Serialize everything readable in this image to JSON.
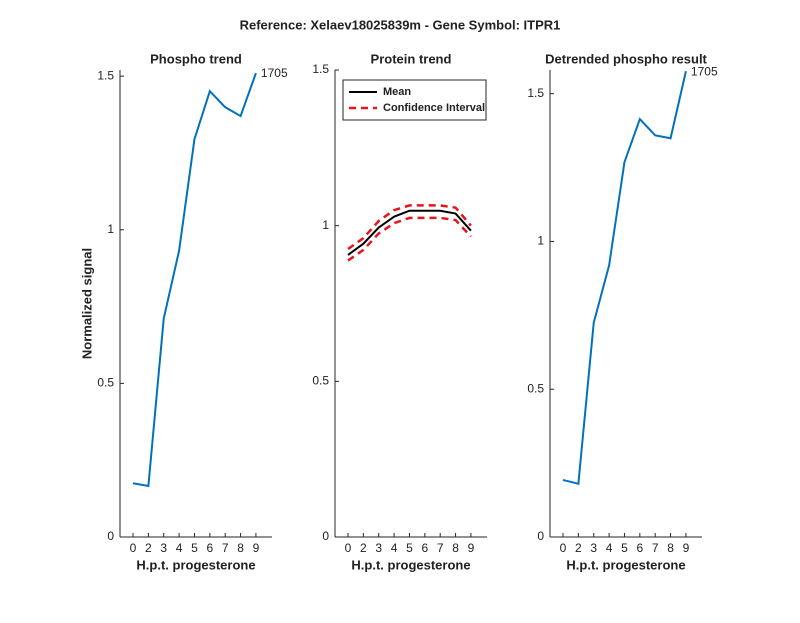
{
  "title": "Reference:  Xelaev18025839m - Gene Symbol:  ITPR1",
  "chart_data": [
    {
      "type": "line",
      "title": "Phospho trend",
      "ylabel": "Normalized signal",
      "xlabel": "H.p.t. progesterone",
      "categories": [
        "0",
        "2",
        "3",
        "4",
        "5",
        "6",
        "7",
        "8",
        "9"
      ],
      "series": [
        {
          "color": "#0072bd",
          "values": [
            0.175,
            0.166,
            0.711,
            0.932,
            1.295,
            1.451,
            1.399,
            1.37,
            1.51
          ]
        }
      ],
      "annotation": "1705",
      "ylim": [
        0,
        1.52
      ],
      "yticks": [
        0,
        0.5,
        1,
        1.5
      ]
    },
    {
      "type": "line",
      "title": "Protein trend",
      "xlabel": "H.p.t. progesterone",
      "categories": [
        "0",
        "2",
        "3",
        "4",
        "5",
        "6",
        "7",
        "8",
        "9"
      ],
      "series": [
        {
          "name": "Mean",
          "color": "#000000",
          "values": [
            0.906,
            0.942,
            0.994,
            1.029,
            1.048,
            1.048,
            1.048,
            1.039,
            0.984
          ]
        },
        {
          "name": "Confidence Interval",
          "color": "#e8141b",
          "dashed": true,
          "values": [
            0.925,
            0.96,
            1.015,
            1.05,
            1.065,
            1.065,
            1.065,
            1.058,
            1.0
          ],
          "lower": [
            0.888,
            0.922,
            0.975,
            1.008,
            1.025,
            1.025,
            1.025,
            1.018,
            0.965
          ]
        }
      ],
      "legend": "upper left",
      "ylim": [
        0,
        1.5
      ],
      "yticks": [
        0,
        0.5,
        1,
        1.5
      ]
    },
    {
      "type": "line",
      "title": "Detrended phospho result",
      "xlabel": "H.p.t. progesterone",
      "categories": [
        "0",
        "2",
        "3",
        "4",
        "5",
        "6",
        "7",
        "8",
        "9"
      ],
      "series": [
        {
          "color": "#0072bd",
          "values": [
            0.193,
            0.18,
            0.725,
            0.919,
            1.268,
            1.414,
            1.359,
            1.349,
            1.576
          ]
        }
      ],
      "annotation": "1705",
      "ylim": [
        0,
        1.58
      ],
      "yticks": [
        0,
        0.5,
        1,
        1.5
      ]
    }
  ]
}
